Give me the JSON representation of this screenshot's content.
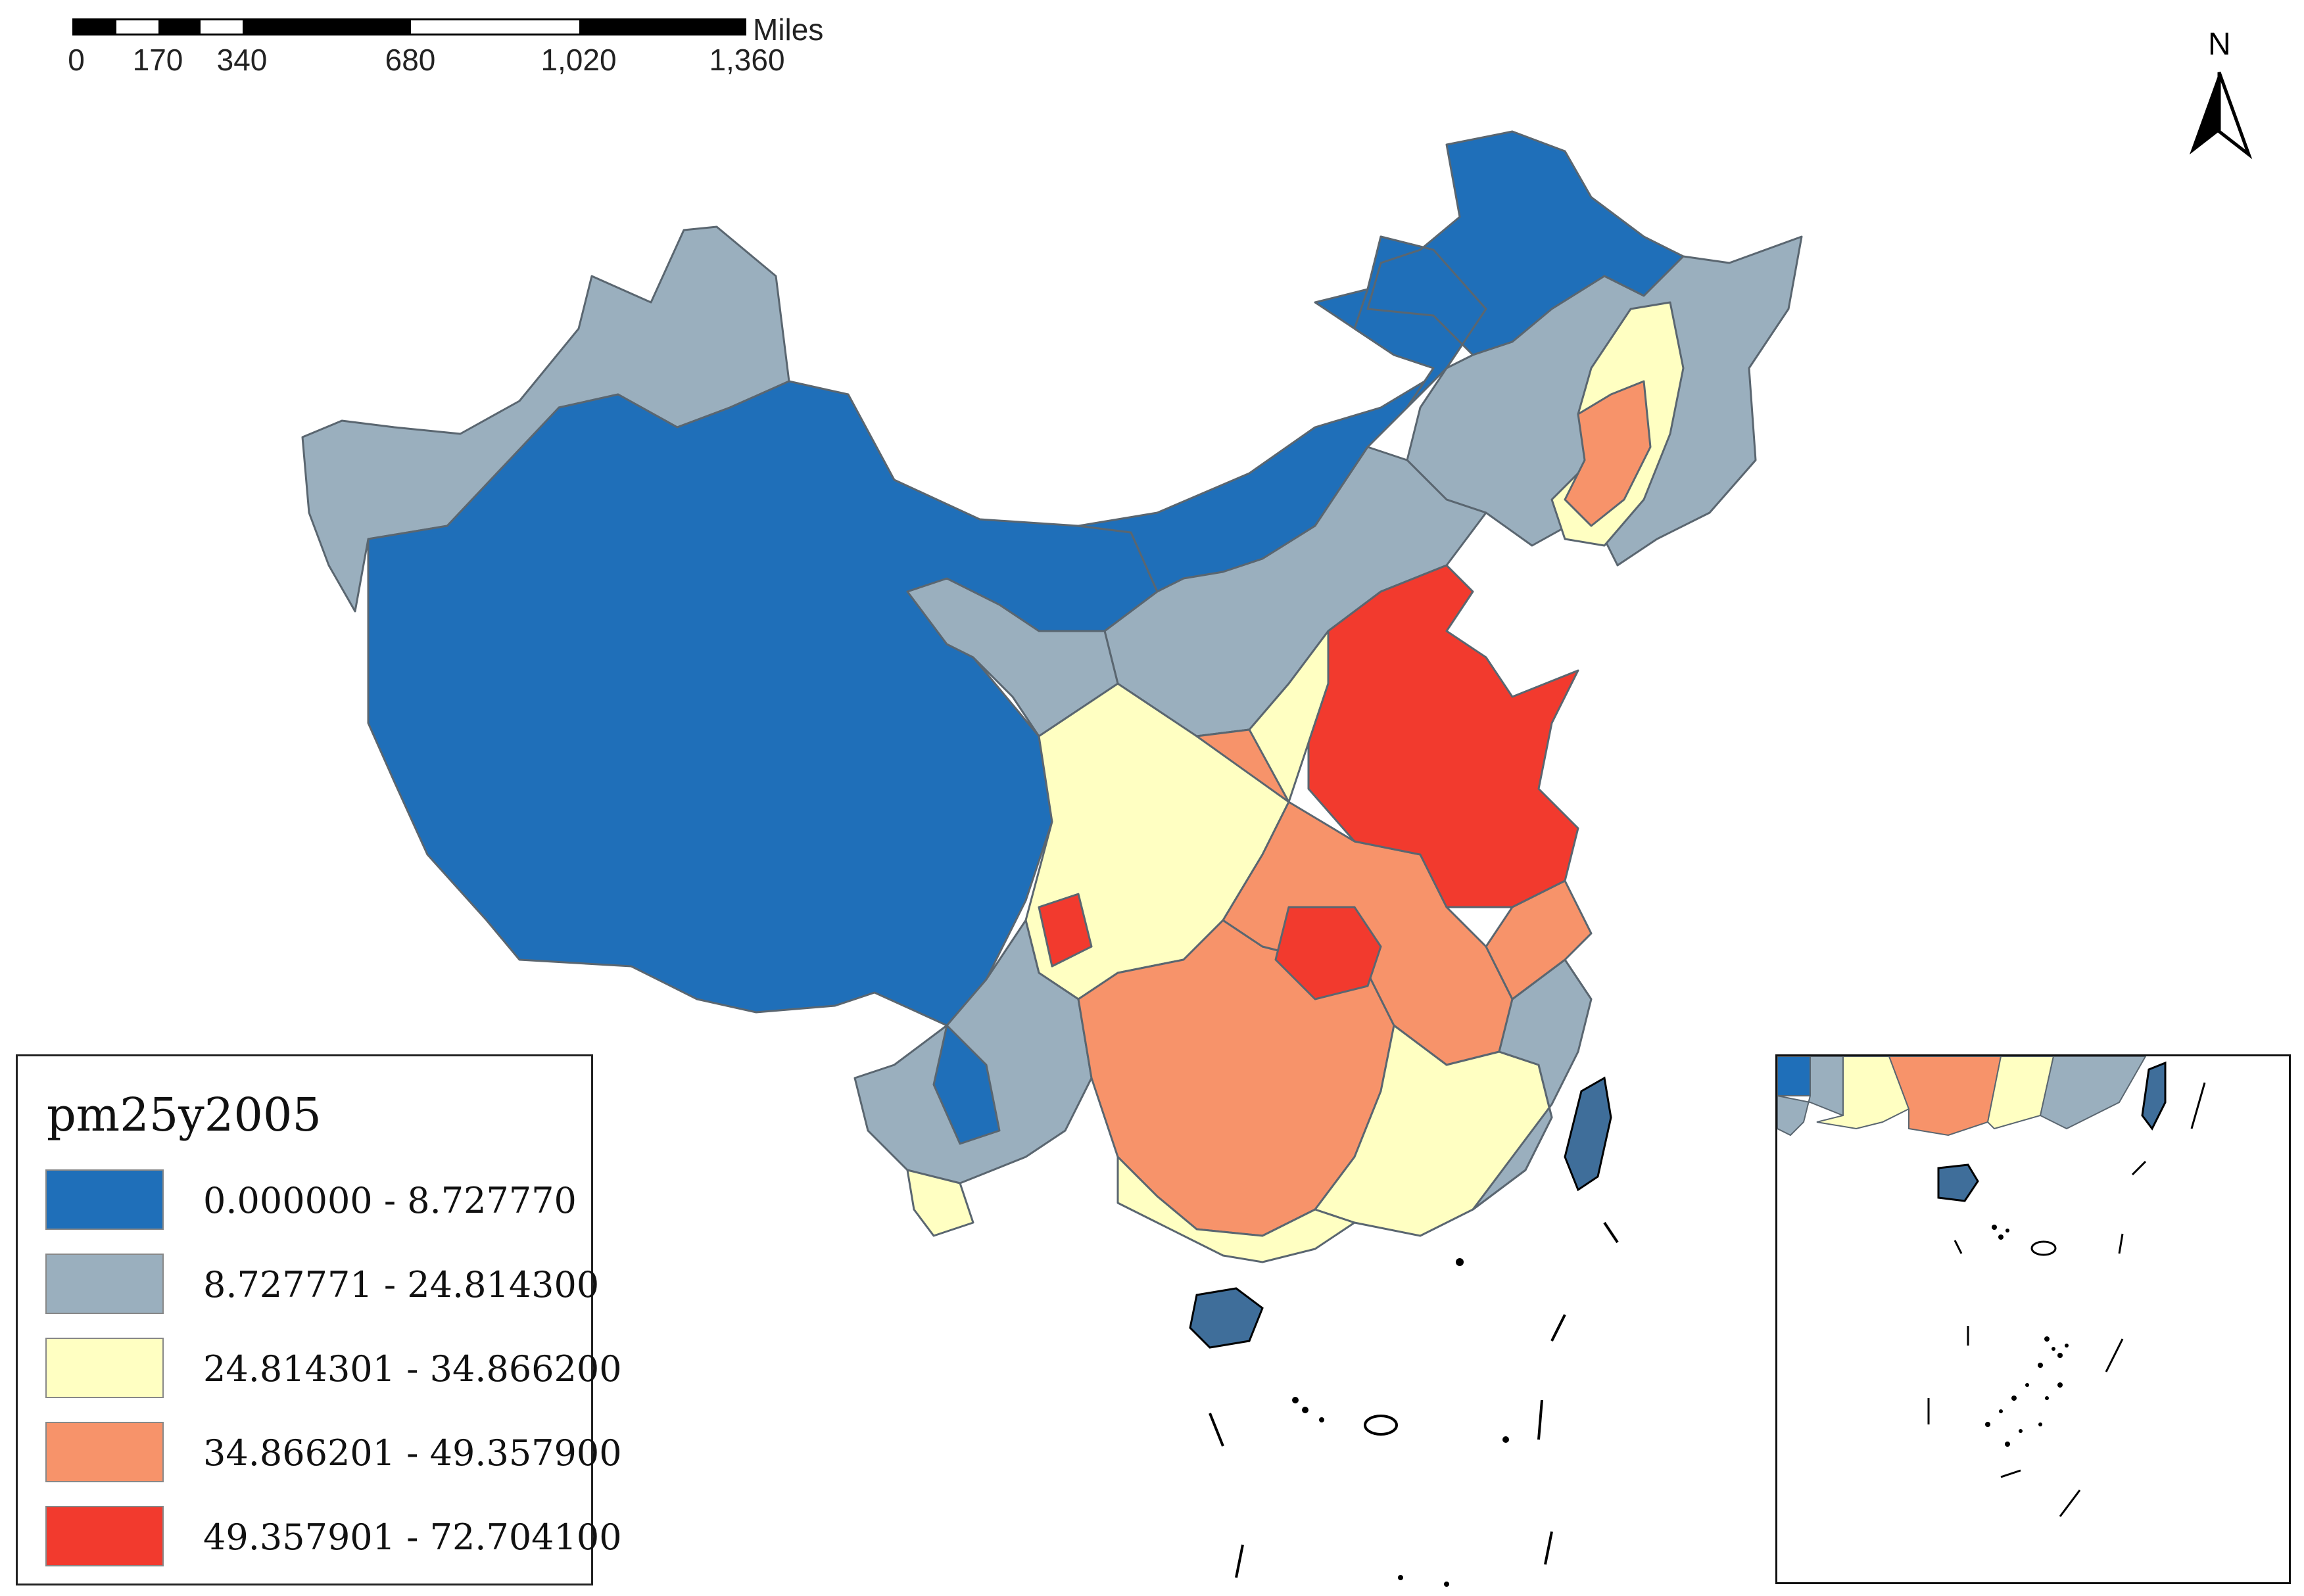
{
  "scale_bar": {
    "unit": "Miles",
    "ticks": [
      "0",
      "170",
      "340",
      "680",
      "1,020",
      "1,360"
    ]
  },
  "north_arrow": {
    "label": "N"
  },
  "legend": {
    "title": "pm25y2005",
    "classes": [
      {
        "label": "0.000000 - 8.727770",
        "color": "#1f6fb9"
      },
      {
        "label": "8.727771 - 24.814300",
        "color": "#9aafbe"
      },
      {
        "label": "24.814301 - 34.866200",
        "color": "#ffffc2"
      },
      {
        "label": "34.866201 - 49.357900",
        "color": "#f7936a"
      },
      {
        "label": "49.357901 - 72.704100",
        "color": "#f23a2e"
      }
    ]
  },
  "colors": {
    "boundary": "#5a6670",
    "outline": "#000000",
    "taiwan_hainan": "#3f6e9a"
  }
}
